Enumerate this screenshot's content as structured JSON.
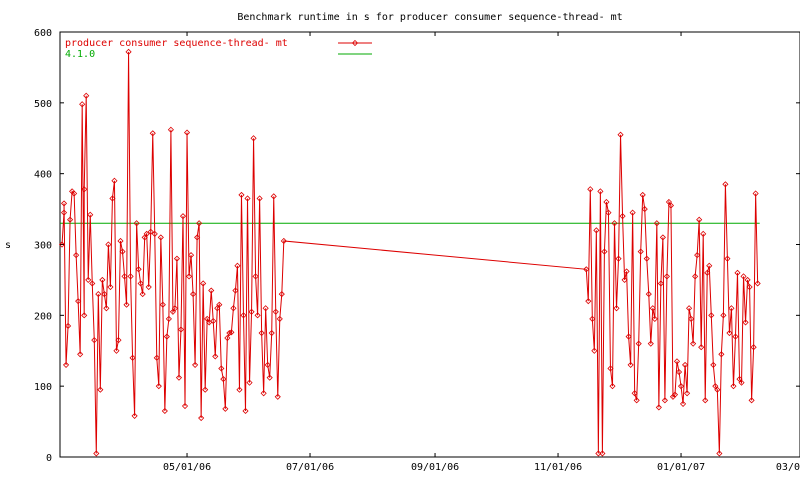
{
  "chart_data": {
    "type": "line",
    "title": "Benchmark runtime in s for producer consumer sequence-thread-  mt",
    "xlabel": "",
    "ylabel": "s",
    "ylim": [
      0,
      600
    ],
    "yticks": [
      0,
      100,
      200,
      300,
      400,
      500,
      600
    ],
    "xlim": [
      "2006-02-27",
      "2007-03-01"
    ],
    "xticks": [
      {
        "date": "2006-05-01",
        "label": "05/01/06"
      },
      {
        "date": "2006-07-01",
        "label": "07/01/06"
      },
      {
        "date": "2006-09-01",
        "label": "09/01/06"
      },
      {
        "date": "2006-11-01",
        "label": "11/01/06"
      },
      {
        "date": "2007-01-01",
        "label": "01/01/07"
      },
      {
        "date": "2007-03-01",
        "label": "03/01/07"
      }
    ],
    "grid": false,
    "legend_position": "top-left",
    "series": [
      {
        "name": "producer consumer sequence-thread-  mt",
        "color": "#dd0000",
        "markers": "diamond",
        "points": [
          [
            "2006-02-28",
            300
          ],
          [
            "2006-03-01",
            345
          ],
          [
            "2006-03-01",
            358
          ],
          [
            "2006-03-02",
            130
          ],
          [
            "2006-03-03",
            185
          ],
          [
            "2006-03-04",
            335
          ],
          [
            "2006-03-05",
            375
          ],
          [
            "2006-03-06",
            372
          ],
          [
            "2006-03-07",
            285
          ],
          [
            "2006-03-08",
            220
          ],
          [
            "2006-03-09",
            145
          ],
          [
            "2006-03-10",
            498
          ],
          [
            "2006-03-11",
            200
          ],
          [
            "2006-03-11",
            378
          ],
          [
            "2006-03-12",
            510
          ],
          [
            "2006-03-13",
            250
          ],
          [
            "2006-03-14",
            342
          ],
          [
            "2006-03-15",
            245
          ],
          [
            "2006-03-16",
            165
          ],
          [
            "2006-03-17",
            5
          ],
          [
            "2006-03-18",
            230
          ],
          [
            "2006-03-19",
            95
          ],
          [
            "2006-03-20",
            250
          ],
          [
            "2006-03-21",
            230
          ],
          [
            "2006-03-22",
            210
          ],
          [
            "2006-03-23",
            300
          ],
          [
            "2006-03-24",
            240
          ],
          [
            "2006-03-25",
            365
          ],
          [
            "2006-03-26",
            390
          ],
          [
            "2006-03-27",
            150
          ],
          [
            "2006-03-28",
            165
          ],
          [
            "2006-03-29",
            305
          ],
          [
            "2006-03-30",
            290
          ],
          [
            "2006-03-31",
            255
          ],
          [
            "2006-04-01",
            215
          ],
          [
            "2006-04-02",
            572
          ],
          [
            "2006-04-03",
            255
          ],
          [
            "2006-04-04",
            140
          ],
          [
            "2006-04-05",
            58
          ],
          [
            "2006-04-06",
            330
          ],
          [
            "2006-04-07",
            265
          ],
          [
            "2006-04-08",
            245
          ],
          [
            "2006-04-09",
            230
          ],
          [
            "2006-04-10",
            310
          ],
          [
            "2006-04-11",
            315
          ],
          [
            "2006-04-12",
            240
          ],
          [
            "2006-04-13",
            318
          ],
          [
            "2006-04-14",
            457
          ],
          [
            "2006-04-15",
            315
          ],
          [
            "2006-04-16",
            140
          ],
          [
            "2006-04-17",
            100
          ],
          [
            "2006-04-18",
            310
          ],
          [
            "2006-04-19",
            215
          ],
          [
            "2006-04-20",
            65
          ],
          [
            "2006-04-21",
            170
          ],
          [
            "2006-04-22",
            195
          ],
          [
            "2006-04-23",
            462
          ],
          [
            "2006-04-24",
            205
          ],
          [
            "2006-04-25",
            210
          ],
          [
            "2006-04-26",
            280
          ],
          [
            "2006-04-27",
            112
          ],
          [
            "2006-04-28",
            180
          ],
          [
            "2006-04-29",
            340
          ],
          [
            "2006-04-30",
            72
          ],
          [
            "2006-05-01",
            458
          ],
          [
            "2006-05-02",
            255
          ],
          [
            "2006-05-03",
            285
          ],
          [
            "2006-05-04",
            230
          ],
          [
            "2006-05-05",
            130
          ],
          [
            "2006-05-06",
            310
          ],
          [
            "2006-05-07",
            330
          ],
          [
            "2006-05-08",
            55
          ],
          [
            "2006-05-09",
            245
          ],
          [
            "2006-05-10",
            95
          ],
          [
            "2006-05-11",
            195
          ],
          [
            "2006-05-12",
            190
          ],
          [
            "2006-05-13",
            235
          ],
          [
            "2006-05-14",
            192
          ],
          [
            "2006-05-15",
            142
          ],
          [
            "2006-05-16",
            210
          ],
          [
            "2006-05-17",
            215
          ],
          [
            "2006-05-18",
            125
          ],
          [
            "2006-05-19",
            110
          ],
          [
            "2006-05-20",
            68
          ],
          [
            "2006-05-21",
            168
          ],
          [
            "2006-05-22",
            175
          ],
          [
            "2006-05-23",
            176
          ],
          [
            "2006-05-24",
            210
          ],
          [
            "2006-05-25",
            235
          ],
          [
            "2006-05-26",
            270
          ],
          [
            "2006-05-27",
            95
          ],
          [
            "2006-05-28",
            370
          ],
          [
            "2006-05-29",
            200
          ],
          [
            "2006-05-30",
            65
          ],
          [
            "2006-05-31",
            365
          ],
          [
            "2006-06-01",
            105
          ],
          [
            "2006-06-02",
            205
          ],
          [
            "2006-06-03",
            450
          ],
          [
            "2006-06-04",
            255
          ],
          [
            "2006-06-05",
            200
          ],
          [
            "2006-06-06",
            365
          ],
          [
            "2006-06-07",
            175
          ],
          [
            "2006-06-08",
            90
          ],
          [
            "2006-06-09",
            210
          ],
          [
            "2006-06-10",
            130
          ],
          [
            "2006-06-11",
            112
          ],
          [
            "2006-06-12",
            175
          ],
          [
            "2006-06-13",
            368
          ],
          [
            "2006-06-14",
            205
          ],
          [
            "2006-06-15",
            85
          ],
          [
            "2006-06-16",
            195
          ],
          [
            "2006-06-17",
            230
          ],
          [
            "2006-06-18",
            305
          ],
          [
            "2006-11-15",
            265
          ],
          [
            "2006-11-16",
            220
          ],
          [
            "2006-11-17",
            378
          ],
          [
            "2006-11-18",
            195
          ],
          [
            "2006-11-19",
            150
          ],
          [
            "2006-11-20",
            320
          ],
          [
            "2006-11-21",
            5
          ],
          [
            "2006-11-22",
            375
          ],
          [
            "2006-11-23",
            5
          ],
          [
            "2006-11-24",
            290
          ],
          [
            "2006-11-25",
            360
          ],
          [
            "2006-11-26",
            345
          ],
          [
            "2006-11-27",
            125
          ],
          [
            "2006-11-28",
            100
          ],
          [
            "2006-11-29",
            330
          ],
          [
            "2006-11-30",
            210
          ],
          [
            "2006-12-01",
            280
          ],
          [
            "2006-12-02",
            455
          ],
          [
            "2006-12-03",
            340
          ],
          [
            "2006-12-04",
            250
          ],
          [
            "2006-12-05",
            262
          ],
          [
            "2006-12-06",
            170
          ],
          [
            "2006-12-07",
            130
          ],
          [
            "2006-12-08",
            345
          ],
          [
            "2006-12-09",
            90
          ],
          [
            "2006-12-10",
            80
          ],
          [
            "2006-12-11",
            160
          ],
          [
            "2006-12-12",
            290
          ],
          [
            "2006-12-13",
            370
          ],
          [
            "2006-12-14",
            350
          ],
          [
            "2006-12-15",
            280
          ],
          [
            "2006-12-16",
            230
          ],
          [
            "2006-12-17",
            160
          ],
          [
            "2006-12-18",
            210
          ],
          [
            "2006-12-19",
            195
          ],
          [
            "2006-12-20",
            330
          ],
          [
            "2006-12-21",
            70
          ],
          [
            "2006-12-22",
            245
          ],
          [
            "2006-12-23",
            310
          ],
          [
            "2006-12-24",
            80
          ],
          [
            "2006-12-25",
            255
          ],
          [
            "2006-12-26",
            360
          ],
          [
            "2006-12-27",
            355
          ],
          [
            "2006-12-28",
            85
          ],
          [
            "2006-12-29",
            88
          ],
          [
            "2006-12-30",
            135
          ],
          [
            "2006-12-31",
            120
          ],
          [
            "2007-01-01",
            100
          ],
          [
            "2007-01-02",
            75
          ],
          [
            "2007-01-03",
            130
          ],
          [
            "2007-01-04",
            90
          ],
          [
            "2007-01-05",
            210
          ],
          [
            "2007-01-06",
            195
          ],
          [
            "2007-01-07",
            160
          ],
          [
            "2007-01-08",
            255
          ],
          [
            "2007-01-09",
            285
          ],
          [
            "2007-01-10",
            335
          ],
          [
            "2007-01-11",
            155
          ],
          [
            "2007-01-12",
            315
          ],
          [
            "2007-01-13",
            80
          ],
          [
            "2007-01-14",
            260
          ],
          [
            "2007-01-15",
            270
          ],
          [
            "2007-01-16",
            200
          ],
          [
            "2007-01-17",
            130
          ],
          [
            "2007-01-18",
            100
          ],
          [
            "2007-01-19",
            95
          ],
          [
            "2007-01-20",
            5
          ],
          [
            "2007-01-21",
            145
          ],
          [
            "2007-01-22",
            200
          ],
          [
            "2007-01-23",
            385
          ],
          [
            "2007-01-24",
            280
          ],
          [
            "2007-01-25",
            175
          ],
          [
            "2007-01-26",
            210
          ],
          [
            "2007-01-27",
            100
          ],
          [
            "2007-01-28",
            170
          ],
          [
            "2007-01-29",
            260
          ],
          [
            "2007-01-30",
            110
          ],
          [
            "2007-01-31",
            105
          ],
          [
            "2007-02-01",
            255
          ],
          [
            "2007-02-02",
            190
          ],
          [
            "2007-02-03",
            250
          ],
          [
            "2007-02-04",
            240
          ],
          [
            "2007-02-05",
            80
          ],
          [
            "2007-02-06",
            155
          ],
          [
            "2007-02-07",
            372
          ],
          [
            "2007-02-08",
            245
          ]
        ]
      },
      {
        "name": "4.1.0",
        "color": "#00aa00",
        "constant": 330,
        "x_from": "2006-02-27",
        "x_to": "2007-02-09"
      }
    ]
  }
}
